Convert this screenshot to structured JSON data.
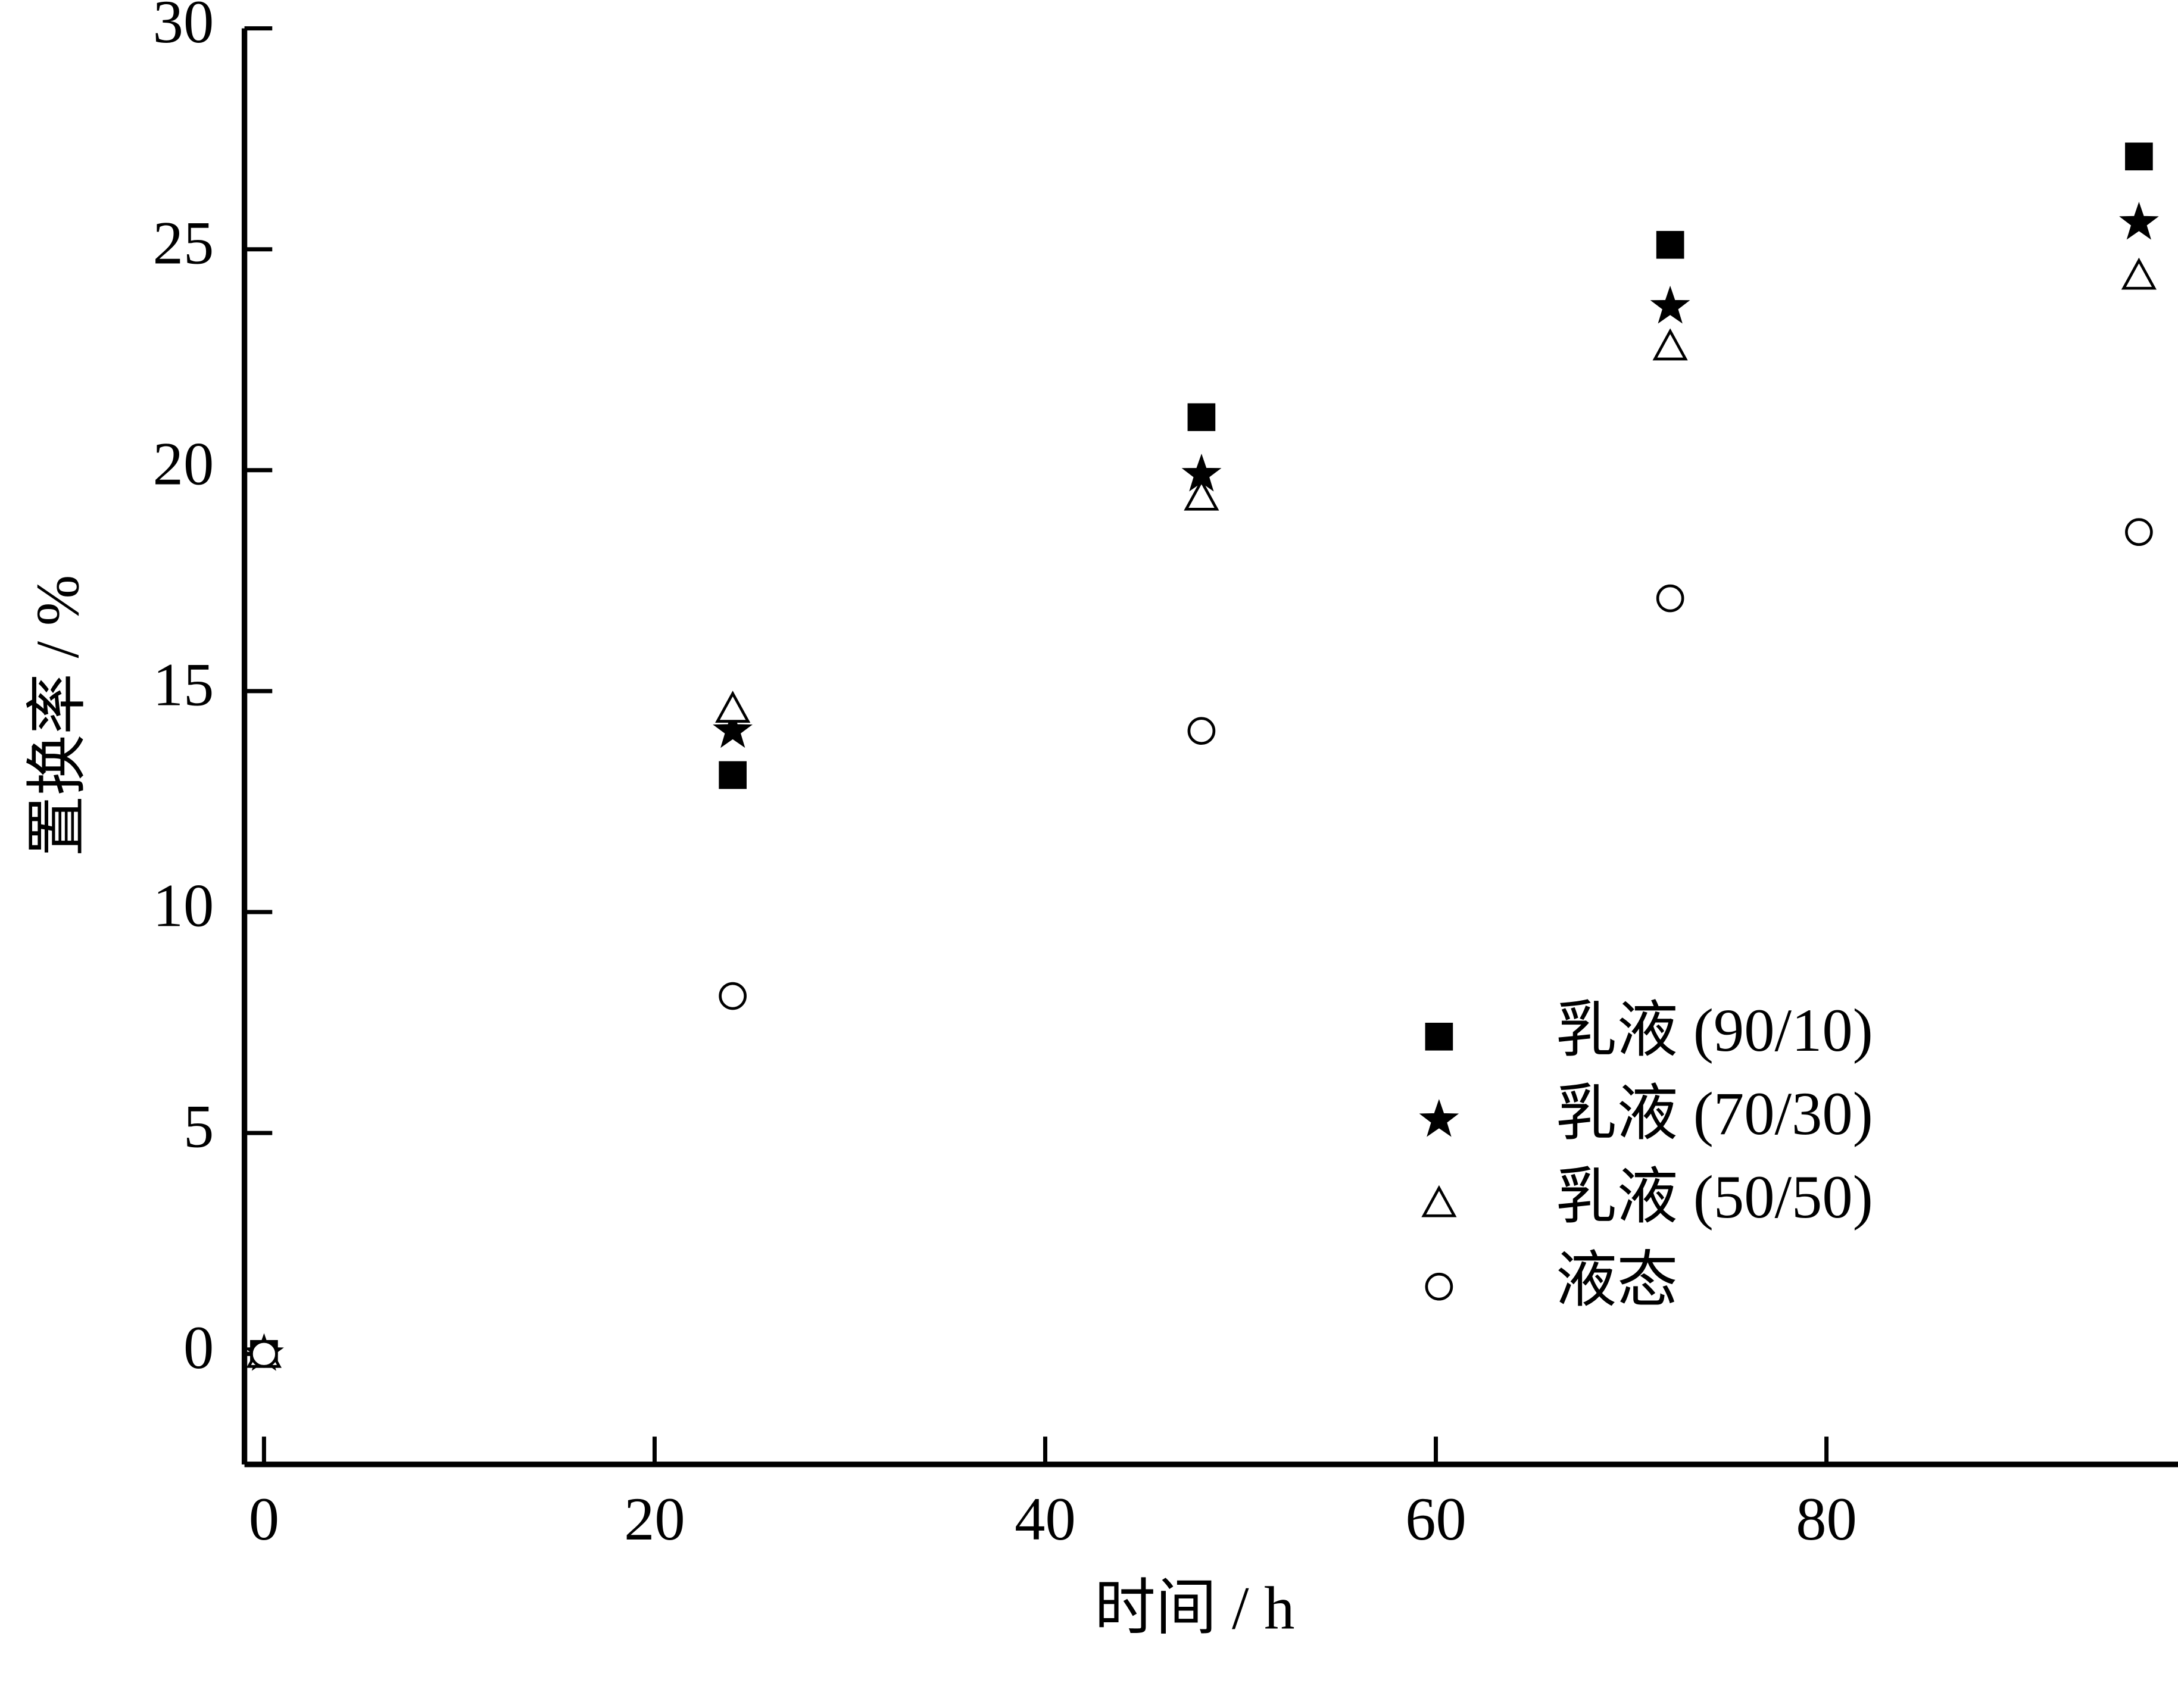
{
  "chart_data": {
    "type": "scatter",
    "x_label": "时间 / h",
    "y_label": "置换率 / %",
    "x": [
      0,
      24,
      48,
      72,
      96
    ],
    "series": [
      {
        "name": "乳液 (90/10)",
        "color": "#000000",
        "marker": "square",
        "filled": true,
        "values": [
          0,
          13.1,
          21.2,
          25.1,
          27.1
        ]
      },
      {
        "name": "乳液 (70/30)",
        "color": "#000000",
        "marker": "star",
        "filled": true,
        "values": [
          0,
          14.1,
          19.9,
          23.7,
          25.6
        ]
      },
      {
        "name": "乳液 (50/50)",
        "color": "#000000",
        "marker": "triangle",
        "filled": false,
        "values": [
          0,
          14.6,
          19.4,
          22.8,
          24.4
        ]
      },
      {
        "name": "液态",
        "color": "#000000",
        "marker": "circle",
        "filled": false,
        "values": [
          0,
          8.1,
          14.1,
          17.1,
          18.6
        ]
      }
    ],
    "xlim": [
      -1,
      98
    ],
    "ylim": [
      -2.5,
      30
    ],
    "xticks": [
      0,
      20,
      40,
      60,
      80
    ],
    "yticks": [
      0,
      5,
      10,
      15,
      20,
      25,
      30
    ],
    "grid": false,
    "legend": "lower right"
  }
}
